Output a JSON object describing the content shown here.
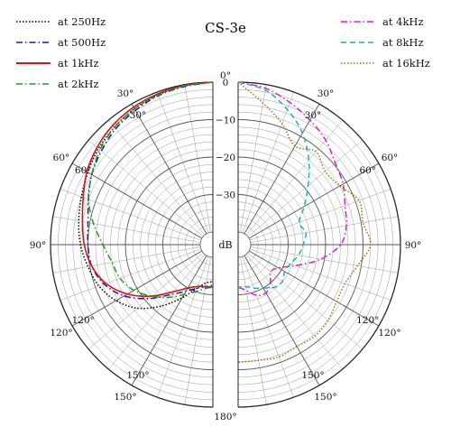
{
  "chart_data": {
    "type": "polar",
    "title": "CS-3e",
    "radial_unit": "dB",
    "radial_range": [
      -40,
      0
    ],
    "radial_ticks": [
      0,
      -10,
      -20,
      -30
    ],
    "radial_tick_labels": [
      "0",
      "−10",
      "−20",
      "−30"
    ],
    "angle_ticks": [
      0,
      30,
      60,
      90,
      120,
      150,
      180
    ],
    "angle_tick_labels": [
      "0°",
      "30°",
      "60°",
      "90°",
      "120°",
      "150°",
      "180°"
    ],
    "angle_unit": "deg",
    "grid": true,
    "legend_left": [
      {
        "name": "at 250Hz",
        "color": "#000000",
        "dash": "dotted"
      },
      {
        "name": "at 500Hz",
        "color": "#1a1aa6",
        "dash": "dashdot"
      },
      {
        "name": "at 1kHz",
        "color": "#d01818",
        "dash": "solid"
      },
      {
        "name": "at 2kHz",
        "color": "#1f9a1f",
        "dash": "dashdot"
      }
    ],
    "legend_right": [
      {
        "name": "at 4kHz",
        "color": "#d81ed8",
        "dash": "dashdot"
      },
      {
        "name": "at 8kHz",
        "color": "#1fb0b0",
        "dash": "dashed"
      },
      {
        "name": "at 16kHz",
        "color": "#a07018",
        "dash": "dotted"
      }
    ],
    "series": [
      {
        "name": "at 250Hz",
        "side": "left",
        "color": "#000000",
        "dash": "dotted",
        "angles": [
          0,
          10,
          20,
          30,
          40,
          50,
          60,
          70,
          80,
          90,
          100,
          110,
          120,
          130,
          140,
          150,
          160,
          170,
          180
        ],
        "values": [
          0,
          -0.3,
          -0.8,
          -1.5,
          -2.5,
          -3.5,
          -4.8,
          -6,
          -7,
          -8,
          -9.5,
          -11,
          -13.5,
          -17,
          -22,
          -27,
          -31,
          -33,
          -33.5
        ]
      },
      {
        "name": "at 500Hz",
        "side": "left",
        "color": "#1a1aa6",
        "dash": "dashdot",
        "angles": [
          0,
          10,
          20,
          30,
          40,
          50,
          60,
          70,
          80,
          90,
          100,
          110,
          120,
          130,
          140,
          150,
          160,
          170,
          180
        ],
        "values": [
          0,
          -0.5,
          -1,
          -2,
          -3,
          -4.5,
          -6,
          -8,
          -9.5,
          -10,
          -10.5,
          -12.5,
          -16,
          -21,
          -26,
          -29,
          -31,
          -32,
          -32.5
        ]
      },
      {
        "name": "at 1kHz",
        "side": "left",
        "color": "#d01818",
        "dash": "solid",
        "angles": [
          0,
          10,
          20,
          30,
          40,
          50,
          60,
          70,
          80,
          90,
          100,
          110,
          120,
          130,
          140,
          150,
          160,
          170,
          180
        ],
        "values": [
          0,
          -0.2,
          -0.5,
          -1,
          -1.8,
          -3,
          -4.5,
          -6.5,
          -8,
          -9,
          -10.5,
          -13,
          -17,
          -22,
          -27,
          -30,
          -31.5,
          -32,
          -32
        ]
      },
      {
        "name": "at 2kHz",
        "side": "left",
        "color": "#1f9a1f",
        "dash": "dashdot",
        "angles": [
          0,
          10,
          20,
          30,
          40,
          50,
          60,
          70,
          80,
          90,
          100,
          110,
          120,
          130,
          140,
          150,
          160,
          170,
          180
        ],
        "values": [
          0,
          -0.3,
          -0.8,
          -1.5,
          -2.5,
          -4,
          -6,
          -8,
          -11,
          -14,
          -16,
          -17,
          -19,
          -22,
          -25,
          -28,
          -30,
          -31.5,
          -32
        ]
      },
      {
        "name": "at 4kHz",
        "side": "right",
        "color": "#d81ed8",
        "dash": "dashdot",
        "angles": [
          0,
          10,
          20,
          30,
          40,
          50,
          60,
          70,
          80,
          90,
          100,
          110,
          120,
          130,
          140,
          150,
          160,
          170,
          180
        ],
        "values": [
          0,
          -1,
          -3,
          -5,
          -7,
          -9.5,
          -11,
          -13,
          -14,
          -16,
          -21,
          -27,
          -31,
          -32,
          -30,
          -28.5,
          -29,
          -31,
          -32
        ]
      },
      {
        "name": "at 8kHz",
        "side": "right",
        "color": "#1fb0b0",
        "dash": "dashed",
        "angles": [
          0,
          10,
          20,
          30,
          40,
          50,
          60,
          70,
          80,
          90,
          100,
          110,
          120,
          130,
          140,
          150,
          160,
          170,
          180
        ],
        "values": [
          0,
          -1.5,
          -5,
          -9,
          -14,
          -19,
          -23,
          -26,
          -25,
          -26,
          -27,
          -28.5,
          -29,
          -28,
          -28.5,
          -30,
          -31,
          -32,
          -32
        ]
      },
      {
        "name": "at 16kHz",
        "side": "right",
        "color": "#a07018",
        "dash": "dotted",
        "angles": [
          0,
          10,
          20,
          30,
          40,
          50,
          60,
          70,
          80,
          90,
          100,
          110,
          120,
          130,
          140,
          150,
          160,
          170,
          180
        ],
        "values": [
          0,
          -5,
          -9,
          -13,
          -11,
          -13,
          -12,
          -9,
          -9.5,
          -8,
          -11,
          -13,
          -13,
          -12,
          -11.5,
          -12,
          -11.5,
          -12,
          -12
        ]
      }
    ]
  }
}
